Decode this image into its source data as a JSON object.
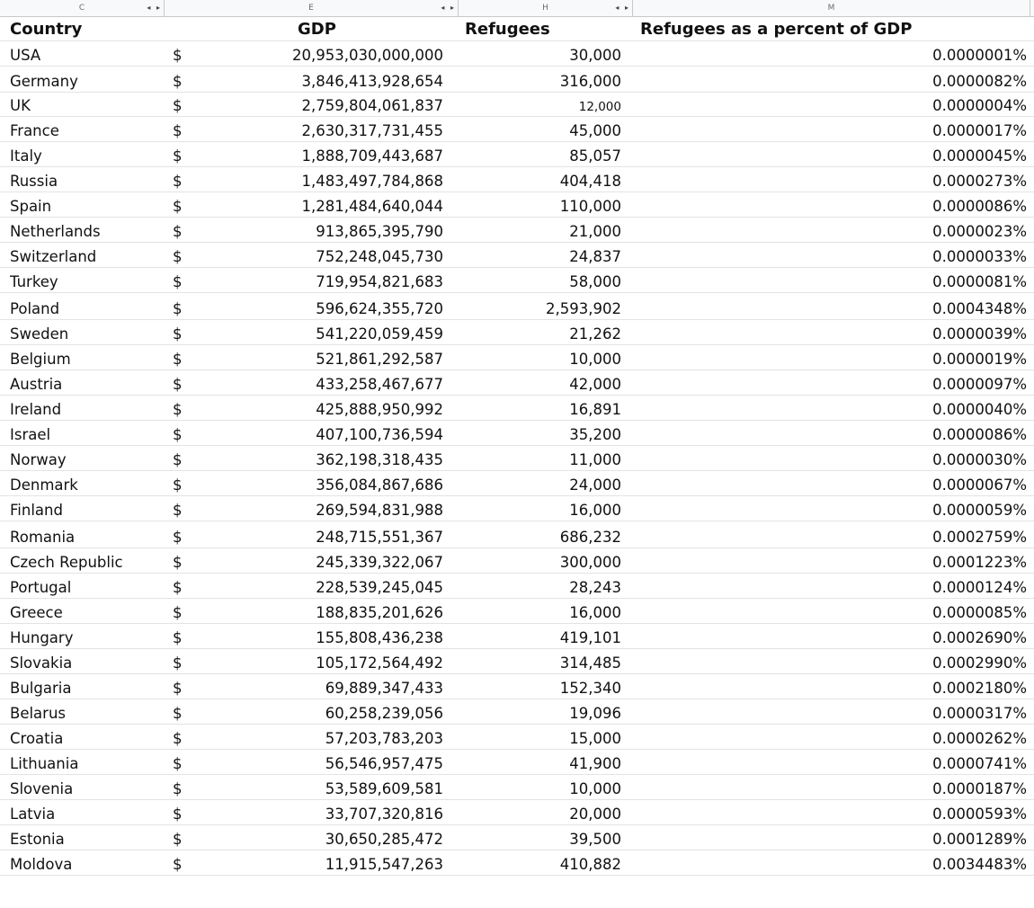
{
  "column_headers": [
    {
      "letter": "C",
      "arrows": "◂ ▸"
    },
    {
      "letter": "E",
      "arrows": "◂ ▸"
    },
    {
      "letter": "H",
      "arrows": "◂ ▸"
    },
    {
      "letter": "M",
      "arrows": ""
    }
  ],
  "table": {
    "headers": {
      "country": "Country",
      "gdp": "GDP",
      "refugees": "Refugees",
      "percent": "Refugees as a percent of GDP"
    },
    "currency_symbol": "$",
    "rows": [
      {
        "country": "USA",
        "gdp": "20,953,030,000,000",
        "refugees": "30,000",
        "percent": "0.0000001%"
      },
      {
        "country": "Germany",
        "gdp": "3,846,413,928,654",
        "refugees": "316,000",
        "percent": "0.0000082%"
      },
      {
        "country": "UK",
        "gdp": "2,759,804,061,837",
        "refugees": "12,000",
        "percent": "0.0000004%",
        "small": true
      },
      {
        "country": "France",
        "gdp": "2,630,317,731,455",
        "refugees": "45,000",
        "percent": "0.0000017%"
      },
      {
        "country": "Italy",
        "gdp": "1,888,709,443,687",
        "refugees": "85,057",
        "percent": "0.0000045%"
      },
      {
        "country": "Russia",
        "gdp": "1,483,497,784,868",
        "refugees": "404,418",
        "percent": "0.0000273%"
      },
      {
        "country": "Spain",
        "gdp": "1,281,484,640,044",
        "refugees": "110,000",
        "percent": "0.0000086%"
      },
      {
        "country": "Netherlands",
        "gdp": "913,865,395,790",
        "refugees": "21,000",
        "percent": "0.0000023%"
      },
      {
        "country": "Switzerland",
        "gdp": "752,248,045,730",
        "refugees": "24,837",
        "percent": "0.0000033%"
      },
      {
        "country": "Turkey",
        "gdp": "719,954,821,683",
        "refugees": "58,000",
        "percent": "0.0000081%"
      },
      {
        "country": "Poland",
        "gdp": "596,624,355,720",
        "refugees": "2,593,902",
        "percent": "0.0004348%"
      },
      {
        "country": "Sweden",
        "gdp": "541,220,059,459",
        "refugees": "21,262",
        "percent": "0.0000039%"
      },
      {
        "country": "Belgium",
        "gdp": "521,861,292,587",
        "refugees": "10,000",
        "percent": "0.0000019%"
      },
      {
        "country": "Austria",
        "gdp": "433,258,467,677",
        "refugees": "42,000",
        "percent": "0.0000097%"
      },
      {
        "country": "Ireland",
        "gdp": "425,888,950,992",
        "refugees": "16,891",
        "percent": "0.0000040%"
      },
      {
        "country": "Israel",
        "gdp": "407,100,736,594",
        "refugees": "35,200",
        "percent": "0.0000086%"
      },
      {
        "country": "Norway",
        "gdp": "362,198,318,435",
        "refugees": "11,000",
        "percent": "0.0000030%"
      },
      {
        "country": "Denmark",
        "gdp": "356,084,867,686",
        "refugees": "24,000",
        "percent": "0.0000067%"
      },
      {
        "country": "Finland",
        "gdp": "269,594,831,988",
        "refugees": "16,000",
        "percent": "0.0000059%"
      },
      {
        "country": "Romania",
        "gdp": "248,715,551,367",
        "refugees": "686,232",
        "percent": "0.0002759%"
      },
      {
        "country": "Czech Republic",
        "gdp": "245,339,322,067",
        "refugees": "300,000",
        "percent": "0.0001223%"
      },
      {
        "country": "Portugal",
        "gdp": "228,539,245,045",
        "refugees": "28,243",
        "percent": "0.0000124%"
      },
      {
        "country": "Greece",
        "gdp": "188,835,201,626",
        "refugees": "16,000",
        "percent": "0.0000085%"
      },
      {
        "country": "Hungary",
        "gdp": "155,808,436,238",
        "refugees": "419,101",
        "percent": "0.0002690%"
      },
      {
        "country": "Slovakia",
        "gdp": "105,172,564,492",
        "refugees": "314,485",
        "percent": "0.0002990%"
      },
      {
        "country": "Bulgaria",
        "gdp": "69,889,347,433",
        "refugees": "152,340",
        "percent": "0.0002180%"
      },
      {
        "country": "Belarus",
        "gdp": "60,258,239,056",
        "refugees": "19,096",
        "percent": "0.0000317%"
      },
      {
        "country": "Croatia",
        "gdp": "57,203,783,203",
        "refugees": "15,000",
        "percent": "0.0000262%"
      },
      {
        "country": "Lithuania",
        "gdp": "56,546,957,475",
        "refugees": "41,900",
        "percent": "0.0000741%"
      },
      {
        "country": "Slovenia",
        "gdp": "53,589,609,581",
        "refugees": "10,000",
        "percent": "0.0000187%"
      },
      {
        "country": "Latvia",
        "gdp": "33,707,320,816",
        "refugees": "20,000",
        "percent": "0.0000593%"
      },
      {
        "country": "Estonia",
        "gdp": "30,650,285,472",
        "refugees": "39,500",
        "percent": "0.0001289%"
      },
      {
        "country": "Moldova",
        "gdp": "11,915,547,263",
        "refugees": "410,882",
        "percent": "0.0034483%"
      }
    ]
  }
}
